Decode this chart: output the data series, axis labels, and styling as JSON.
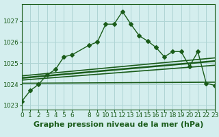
{
  "bg_color": "#d4eeee",
  "line_color": "#1a5c1a",
  "grid_color": "#aed4d4",
  "title": "Graphe pression niveau de la mer (hPa)",
  "xlim": [
    0,
    23
  ],
  "ylim": [
    1022.8,
    1027.8
  ],
  "yticks": [
    1023,
    1024,
    1025,
    1026,
    1027
  ],
  "xticks": [
    0,
    1,
    2,
    3,
    4,
    5,
    6,
    8,
    9,
    10,
    11,
    12,
    13,
    14,
    15,
    16,
    17,
    18,
    19,
    20,
    21,
    22,
    23
  ],
  "series1_x": [
    0,
    1,
    2,
    3,
    4,
    5,
    6,
    8,
    9,
    10,
    11,
    12,
    13,
    14,
    15,
    16,
    17,
    18,
    19,
    20,
    21,
    22,
    23
  ],
  "series1_y": [
    1023.2,
    1023.7,
    1024.0,
    1024.45,
    1024.7,
    1025.3,
    1025.4,
    1025.85,
    1026.0,
    1026.85,
    1026.85,
    1027.45,
    1026.85,
    1026.3,
    1026.05,
    1025.75,
    1025.3,
    1025.55,
    1025.55,
    1024.85,
    1025.55,
    1024.05,
    1023.95
  ],
  "series2_x": [
    0,
    23
  ],
  "series2_y": [
    1024.05,
    1024.1
  ],
  "series3_x": [
    0,
    23
  ],
  "series3_y": [
    1024.2,
    1024.9
  ],
  "series4_x": [
    0,
    23
  ],
  "series4_y": [
    1024.3,
    1025.1
  ],
  "series5_x": [
    0,
    23
  ],
  "series5_y": [
    1024.4,
    1025.25
  ],
  "title_fontsize": 8,
  "tick_fontsize": 6.5
}
